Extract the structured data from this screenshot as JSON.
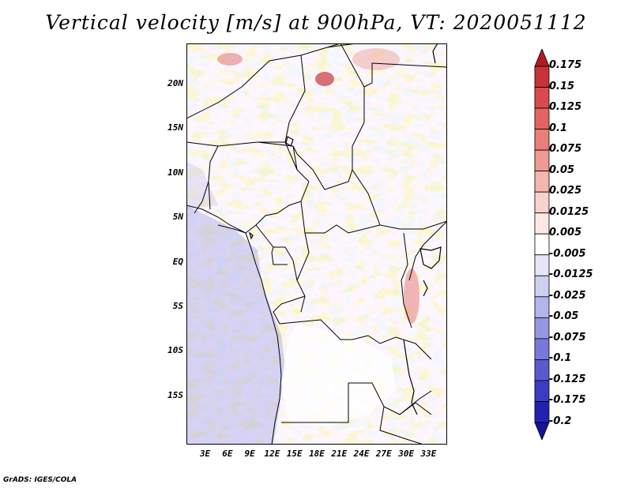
{
  "title": "Vertical velocity [m/s] at 900hPa, VT: 2020051112",
  "footer": "GrADS: IGES/COLA",
  "map": {
    "variable": "Vertical velocity",
    "units": "m/s",
    "level": "900hPa",
    "valid_time": "2020051112",
    "lat_labels": [
      "20N",
      "15N",
      "10N",
      "5N",
      "EQ",
      "5S",
      "10S",
      "15S"
    ],
    "lon_labels": [
      "3E",
      "6E",
      "9E",
      "12E",
      "15E",
      "18E",
      "21E",
      "24E",
      "27E",
      "30E",
      "33E"
    ],
    "lat_range": [
      -20.5,
      24.5
    ],
    "lon_range": [
      0.5,
      35.5
    ]
  },
  "colorbar": {
    "labels": [
      "0.175",
      "0.15",
      "0.125",
      "0.1",
      "0.075",
      "0.05",
      "0.025",
      "0.0125",
      "0.005",
      "-0.005",
      "-0.0125",
      "-0.025",
      "-0.05",
      "-0.075",
      "-0.1",
      "-0.125",
      "-0.175",
      "-0.2"
    ],
    "colors": [
      "#b01c22",
      "#c83238",
      "#d84a4c",
      "#e26462",
      "#e97e7a",
      "#ef9a94",
      "#f4b6b0",
      "#f8d2cd",
      "#fbe8e6",
      "#ffffff",
      "#e6e6f8",
      "#cfcff2",
      "#b4b4ec",
      "#9696e2",
      "#7878d8",
      "#5a5ace",
      "#3c3cc2",
      "#2222b0",
      "#141496"
    ]
  }
}
